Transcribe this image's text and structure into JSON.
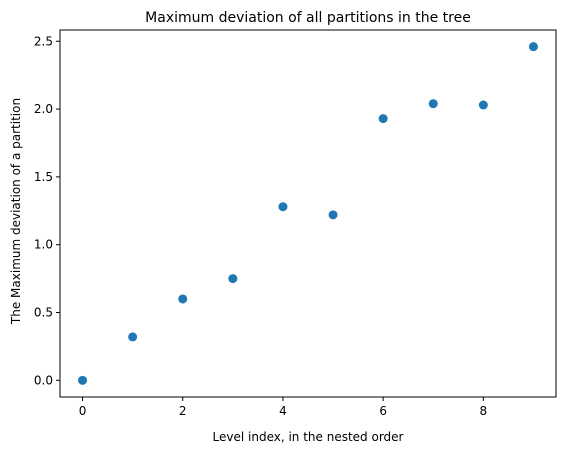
{
  "chart_data": {
    "type": "scatter",
    "title": "Maximum deviation of all partitions in the tree",
    "xlabel": "Level index, in the nested order",
    "ylabel": "The Maximum deviation of a partition",
    "x": [
      0,
      1,
      2,
      3,
      4,
      5,
      6,
      7,
      8,
      9
    ],
    "y": [
      0.0,
      0.32,
      0.6,
      0.75,
      1.28,
      1.22,
      1.93,
      2.04,
      2.03,
      2.46
    ],
    "xlim": [
      -0.45,
      9.45
    ],
    "ylim": [
      -0.123,
      2.583
    ],
    "xticks": [
      0,
      2,
      4,
      6,
      8
    ],
    "xtick_labels": [
      "0",
      "2",
      "4",
      "6",
      "8"
    ],
    "yticks": [
      0.0,
      0.5,
      1.0,
      1.5,
      2.0,
      2.5
    ],
    "ytick_labels": [
      "0.0",
      "0.5",
      "1.0",
      "1.5",
      "2.0",
      "2.5"
    ],
    "grid": false,
    "colors": {
      "marker": "#1f77b4",
      "axes": "#000000",
      "background": "#ffffff"
    }
  }
}
